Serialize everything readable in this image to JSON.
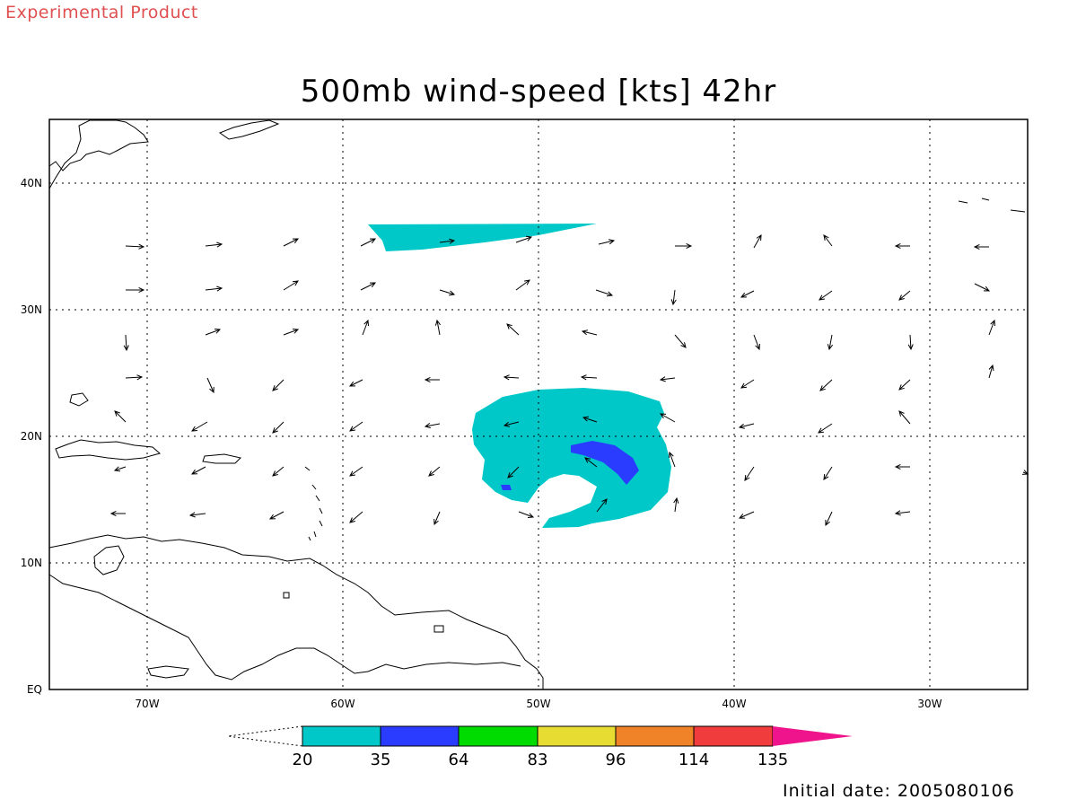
{
  "header": {
    "product_label": "Experimental Product",
    "title": "500mb wind-speed [kts] 42hr"
  },
  "footer": {
    "initial_date": "Initial date: 2005080106"
  },
  "map": {
    "lon_range": [
      -75,
      -25
    ],
    "lat_range": [
      0,
      45
    ],
    "lon_ticks": [
      "70W",
      "60W",
      "50W",
      "40W",
      "30W"
    ],
    "lat_ticks": [
      "40N",
      "30N",
      "20N",
      "10N",
      "EQ"
    ],
    "grid": "dotted"
  },
  "colorbar": {
    "labels": [
      "20",
      "35",
      "64",
      "83",
      "96",
      "114",
      "135"
    ],
    "colors": [
      "#00c8c8",
      "#2a3cff",
      "#00dc00",
      "#e6dc32",
      "#f08228",
      "#f03c3c",
      "#f0148c"
    ]
  },
  "wind_field": {
    "levels_shown": [
      "20-35 kts",
      "35-64 kts"
    ],
    "fill_colors": [
      "#00c8c8",
      "#2a3cff"
    ]
  }
}
